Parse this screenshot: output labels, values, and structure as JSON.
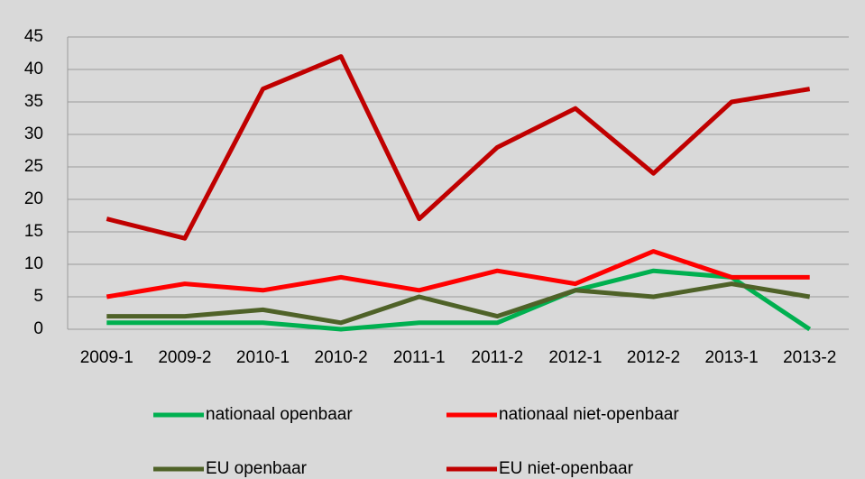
{
  "chart_data": {
    "type": "line",
    "categories": [
      "2009-1",
      "2009-2",
      "2010-1",
      "2010-2",
      "2011-1",
      "2011-2",
      "2012-1",
      "2012-2",
      "2013-1",
      "2013-2"
    ],
    "series": [
      {
        "name": "nationaal openbaar",
        "color": "#00b050",
        "values": [
          1,
          1,
          1,
          0,
          1,
          1,
          6,
          9,
          8,
          0
        ]
      },
      {
        "name": "nationaal niet-openbaar",
        "color": "#ff0000",
        "values": [
          5,
          7,
          6,
          8,
          6,
          9,
          7,
          12,
          8,
          8
        ]
      },
      {
        "name": "EU openbaar",
        "color": "#4f6228",
        "values": [
          2,
          2,
          3,
          1,
          5,
          2,
          6,
          5,
          7,
          5
        ]
      },
      {
        "name": "EU niet-openbaar",
        "color": "#c00000",
        "values": [
          17,
          14,
          37,
          42,
          17,
          28,
          34,
          24,
          35,
          37
        ]
      }
    ],
    "ylim": [
      0,
      45
    ],
    "yticks": [
      0,
      5,
      10,
      15,
      20,
      25,
      30,
      35,
      40,
      45
    ],
    "grid": true,
    "legend": "bottom"
  }
}
